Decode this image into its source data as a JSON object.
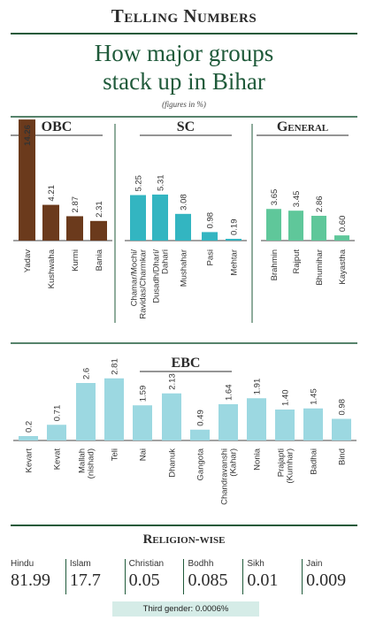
{
  "header": {
    "kicker": "Telling Numbers",
    "headline_line1": "How major groups",
    "headline_line2": "stack up in Bihar",
    "note": "(figures in %)"
  },
  "colors": {
    "obc": "#6b3a1c",
    "sc": "#33b5c1",
    "general": "#5fc79a",
    "ebc": "#9cd8e1",
    "rule": "#1f5a3a"
  },
  "chart_data": [
    {
      "type": "bar",
      "title": "OBC",
      "categories": [
        "Yadav",
        "Kushwaha",
        "Kurmi",
        "Bania"
      ],
      "values": [
        14.26,
        4.21,
        2.87,
        2.31
      ]
    },
    {
      "type": "bar",
      "title": "SC",
      "categories": [
        [
          "Chamar/Mochi/",
          "Ravidas/Charmkar"
        ],
        [
          "Dusadh/Dhari/",
          "Dahari"
        ],
        [
          "Mushahar"
        ],
        [
          "Pasi"
        ],
        [
          "Mehtar"
        ]
      ],
      "values": [
        5.25,
        5.31,
        3.08,
        0.98,
        0.19
      ]
    },
    {
      "type": "bar",
      "title": "General",
      "categories": [
        "Brahmin",
        "Rajput",
        "Bhumihar",
        "Kayastha"
      ],
      "values": [
        3.65,
        3.45,
        2.86,
        0.6
      ]
    },
    {
      "type": "bar",
      "title": "EBC",
      "categories": [
        [
          "Kevart"
        ],
        [
          "Kevat"
        ],
        [
          "Mallah",
          "(nishad)"
        ],
        [
          "Teli"
        ],
        [
          "Nai"
        ],
        [
          "Dhanuk"
        ],
        [
          "Gangota"
        ],
        [
          "Chandravanshi",
          "(Kahar)"
        ],
        [
          "Nonia"
        ],
        [
          "Prajapti",
          "(Kumhar)"
        ],
        [
          "Badhai"
        ],
        [
          "Bind"
        ]
      ],
      "values": [
        0.2,
        0.71,
        2.6,
        2.81,
        1.59,
        2.13,
        0.49,
        1.64,
        1.91,
        1.4,
        1.45,
        0.98
      ]
    }
  ],
  "value_labels": {
    "obc": [
      "14.26",
      "4.21",
      "2.87",
      "2.31"
    ],
    "sc": [
      "5.25",
      "5.31",
      "3.08",
      "0.98",
      "0.19"
    ],
    "general": [
      "3.65",
      "3.45",
      "2.86",
      "0.60"
    ],
    "ebc": [
      "0.2",
      "0.71",
      "2.6",
      "2.81",
      "1.59",
      "2.13",
      "0.49",
      "1.64",
      "1.91",
      "1.40",
      "1.45",
      "0.98"
    ]
  },
  "religion": {
    "title": "Religion-wise",
    "items": [
      {
        "name": "Hindu",
        "value": "81.99"
      },
      {
        "name": "Islam",
        "value": "17.7"
      },
      {
        "name": "Christian",
        "value": "0.05"
      },
      {
        "name": "Bodhh",
        "value": "0.085"
      },
      {
        "name": "Sikh",
        "value": "0.01"
      },
      {
        "name": "Jain",
        "value": "0.009"
      }
    ]
  },
  "third_gender": "Third gender: 0.0006%"
}
